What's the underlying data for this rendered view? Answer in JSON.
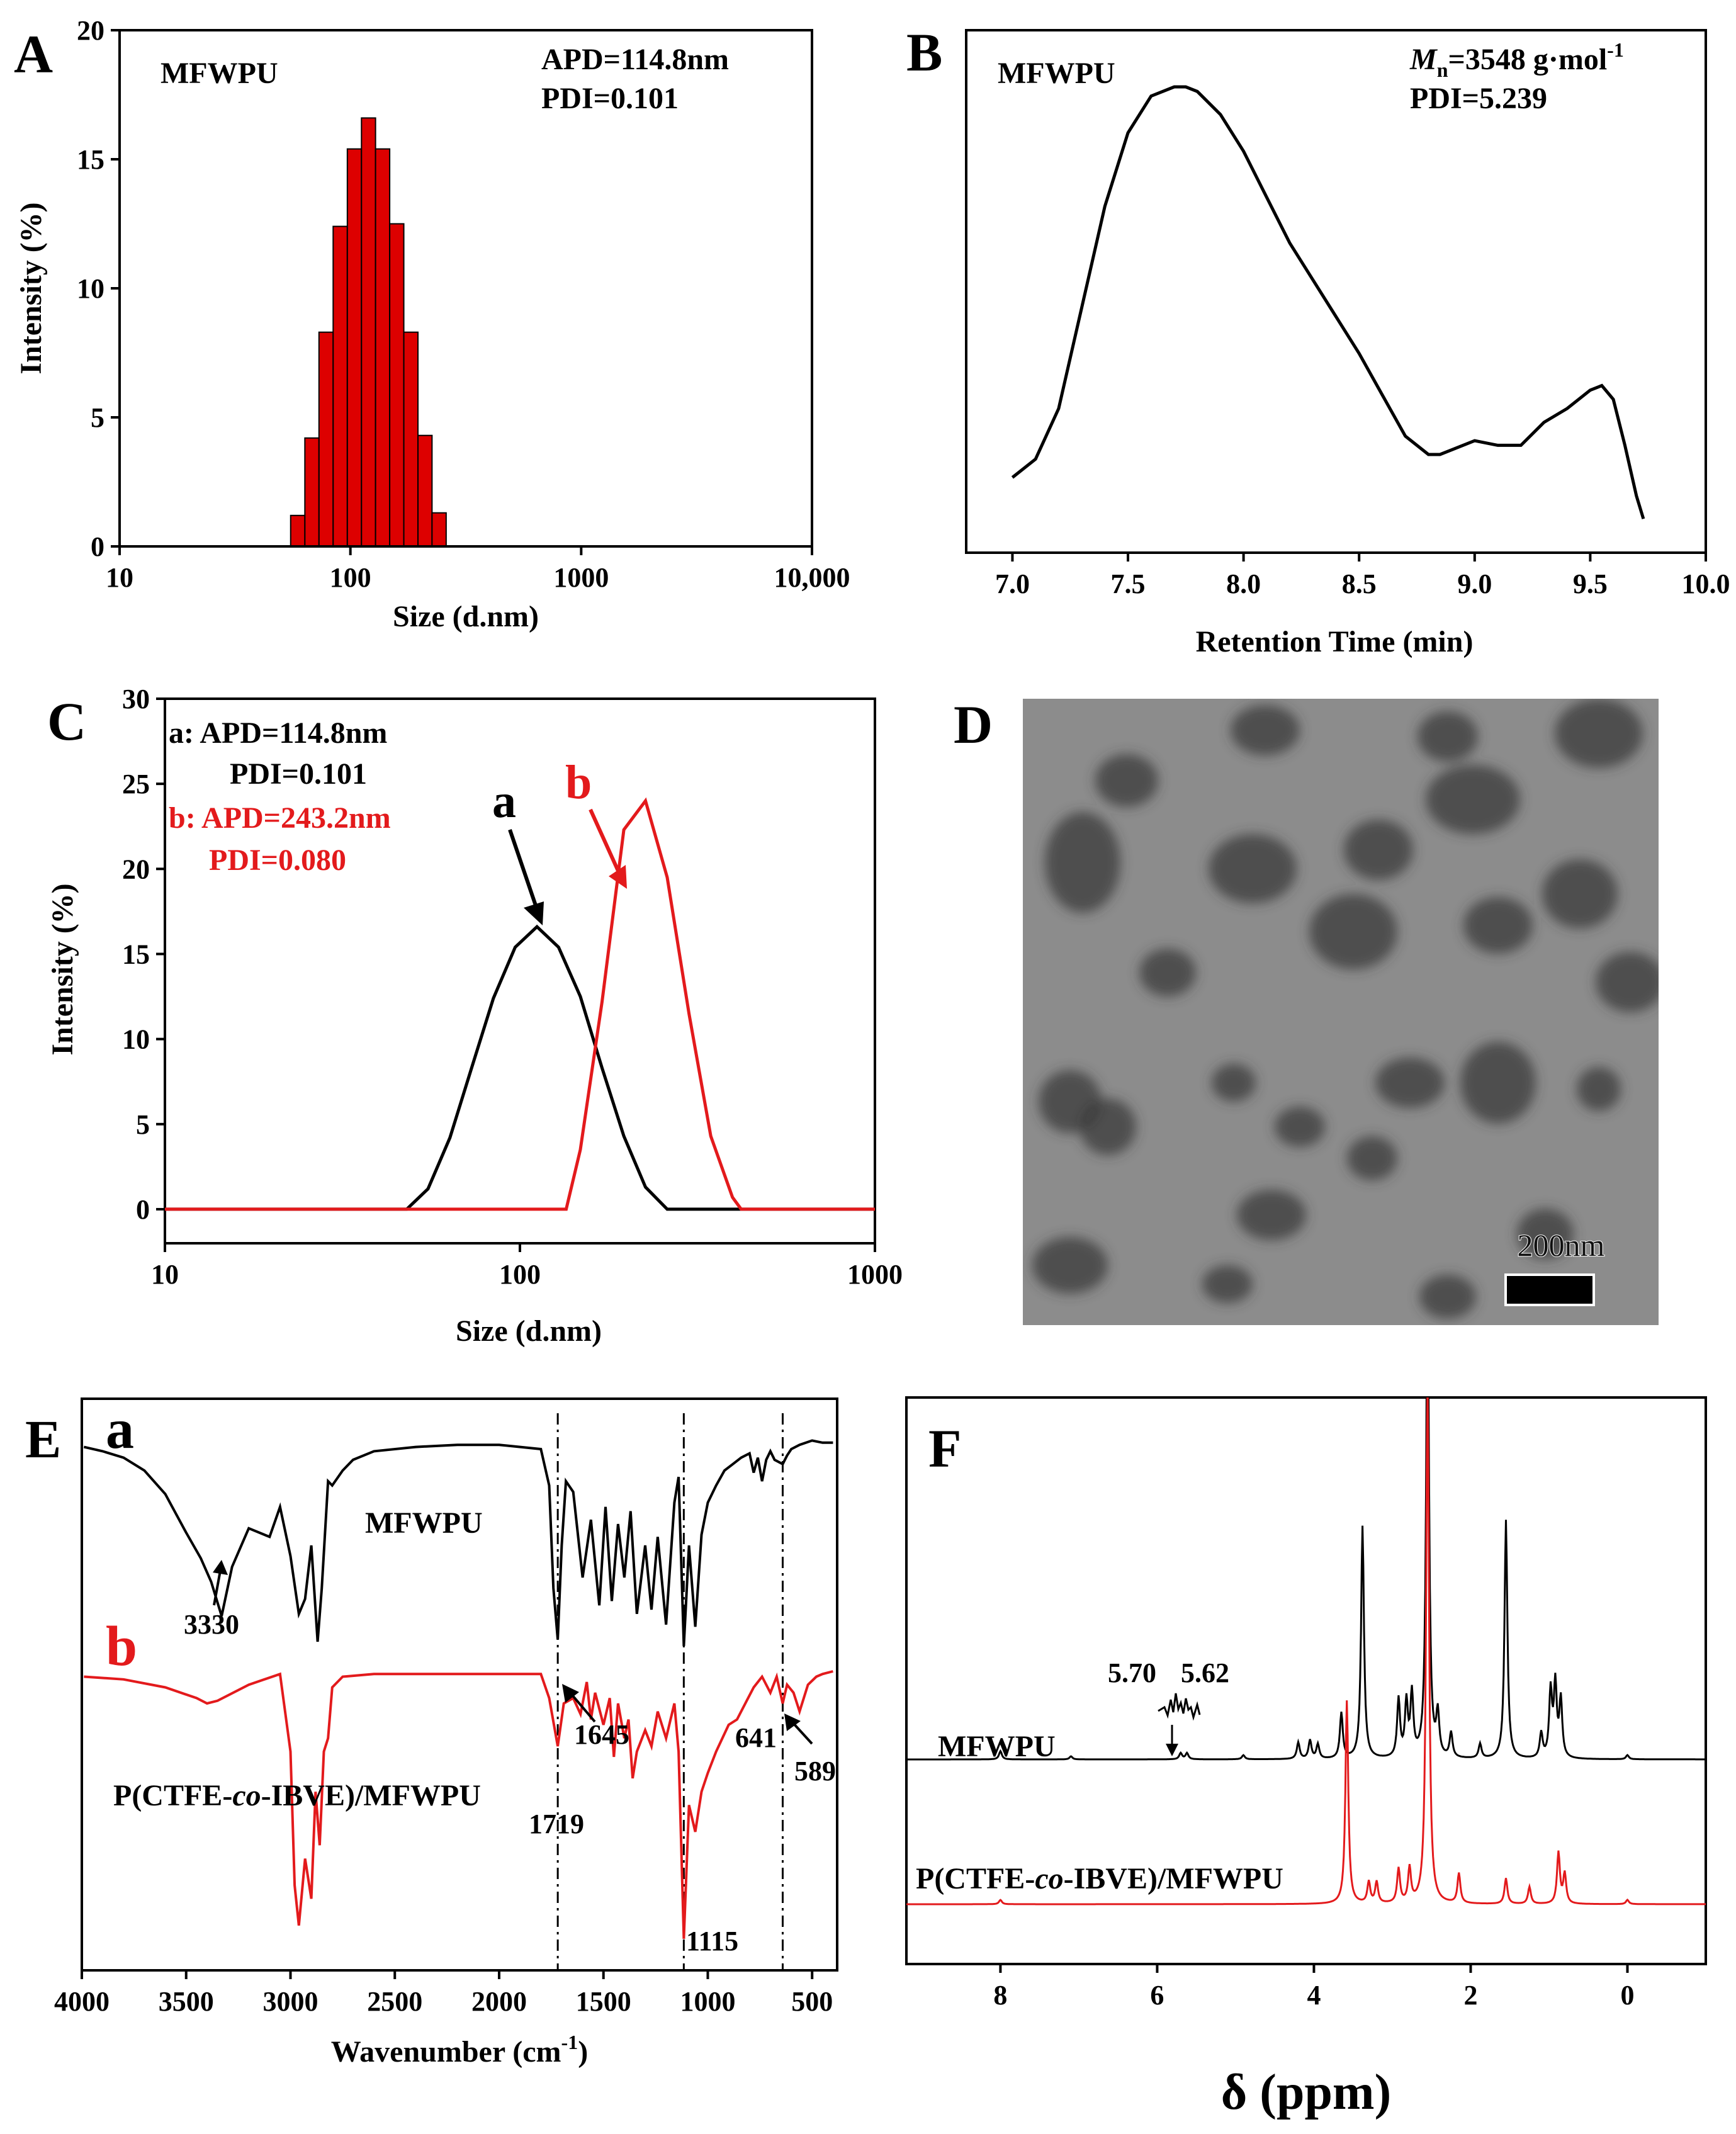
{
  "colors": {
    "black": "#000000",
    "red": "#e31a1c",
    "bar": "#dd0000",
    "tem_bg": "#8a8a8a"
  },
  "chart_data": [
    {
      "panel": "A",
      "type": "bar",
      "xscale": "log",
      "title": "MFWPU",
      "annotations": [
        "APD=114.8nm",
        "PDI=0.101"
      ],
      "xlabel": "Size (d.nm)",
      "ylabel": "Intensity (%)",
      "xlim": [
        10,
        10000
      ],
      "ylim": [
        0,
        20
      ],
      "xticks": [
        10,
        100,
        1000,
        10000
      ],
      "xtick_labels": [
        "10",
        "100",
        "1000",
        "10,000"
      ],
      "yticks": [
        0,
        5,
        10,
        15,
        20
      ],
      "ytick_labels": [
        "0",
        "5",
        "10",
        "15",
        "20"
      ],
      "bin_edges": [
        55.1,
        63.5,
        73.1,
        84.2,
        97.0,
        111.7,
        128.5,
        148.0,
        170.4,
        196.2,
        225.8,
        260.0
      ],
      "values": [
        1.2,
        4.2,
        8.3,
        12.4,
        15.4,
        16.6,
        15.4,
        12.5,
        8.3,
        4.3,
        1.3
      ]
    },
    {
      "panel": "B",
      "type": "line",
      "title": "MFWPU",
      "annotations": [
        "Mn=3548 g·mol -1",
        "PDI=5.239"
      ],
      "mn_prefix": "M",
      "mn_sub": "n",
      "mn_rest": "=3548 g·mol",
      "mn_sup": "-1",
      "pdi_text": "PDI=5.239",
      "xlabel": "Retention Time (min)",
      "ylabel": "",
      "xlim": [
        6.8,
        10.0
      ],
      "ylim": [
        0,
        1
      ],
      "xticks": [
        7.0,
        7.5,
        8.0,
        8.5,
        9.0,
        9.5,
        10.0
      ],
      "xtick_labels": [
        "7.0",
        "7.5",
        "8.0",
        "8.5",
        "9.0",
        "9.5",
        "10.0"
      ],
      "series": [
        {
          "name": "MFWPU",
          "color": "#000000",
          "x": [
            7.0,
            7.1,
            7.2,
            7.3,
            7.4,
            7.5,
            7.6,
            7.7,
            7.75,
            7.8,
            7.9,
            8.0,
            8.1,
            8.2,
            8.3,
            8.4,
            8.5,
            8.6,
            8.7,
            8.8,
            8.85,
            8.9,
            9.0,
            9.1,
            9.2,
            9.3,
            9.4,
            9.5,
            9.55,
            9.6,
            9.65,
            9.7,
            9.73
          ],
          "y": [
            0.15,
            0.19,
            0.3,
            0.52,
            0.74,
            0.9,
            0.98,
            1.0,
            1.0,
            0.99,
            0.94,
            0.86,
            0.76,
            0.66,
            0.58,
            0.5,
            0.42,
            0.33,
            0.24,
            0.2,
            0.2,
            0.21,
            0.23,
            0.22,
            0.22,
            0.27,
            0.3,
            0.34,
            0.35,
            0.32,
            0.22,
            0.11,
            0.06
          ]
        }
      ]
    },
    {
      "panel": "C",
      "type": "line",
      "xscale": "log",
      "xlabel": "Size (d.nm)",
      "ylabel": "Intensity (%)",
      "xlim": [
        10,
        1000
      ],
      "ylim": [
        -2,
        30
      ],
      "xticks": [
        10,
        100,
        1000
      ],
      "xtick_labels": [
        "10",
        "100",
        "1000"
      ],
      "yticks": [
        0,
        5,
        10,
        15,
        20,
        25,
        30
      ],
      "ytick_labels": [
        "0",
        "5",
        "10",
        "15",
        "20",
        "25",
        "30"
      ],
      "series": [
        {
          "name": "a",
          "legend": [
            "a: APD=114.8nm",
            "PDI=0.101"
          ],
          "color": "#000000",
          "x": [
            10,
            48,
            55.1,
            63.5,
            73.1,
            84.2,
            97.0,
            111.7,
            128.5,
            148.0,
            170.4,
            196.2,
            225.8,
            260.0,
            1000
          ],
          "y": [
            0,
            0,
            1.2,
            4.2,
            8.3,
            12.4,
            15.4,
            16.6,
            15.4,
            12.5,
            8.3,
            4.3,
            1.3,
            0,
            0
          ]
        },
        {
          "name": "b",
          "legend": [
            "b: APD=243.2nm",
            "PDI=0.080"
          ],
          "color": "#e31a1c",
          "x": [
            10,
            135,
            148.0,
            170.4,
            196.2,
            225.8,
            260.0,
            299.4,
            344.8,
            397.0,
            420,
            1000
          ],
          "y": [
            0,
            0,
            3.5,
            12.2,
            22.3,
            24.0,
            19.5,
            11.5,
            4.3,
            0.7,
            0,
            0
          ]
        }
      ]
    },
    {
      "panel": "E",
      "type": "line",
      "xlabel": "Wavenumber (cm-1)",
      "xlabel_main": "Wavenumber (cm",
      "xlabel_sup": "-1",
      "xlabel_end": ")",
      "xlim": [
        4000,
        380
      ],
      "xticks": [
        4000,
        3500,
        3000,
        2500,
        2000,
        1500,
        1000,
        500
      ],
      "xtick_labels": [
        "4000",
        "3500",
        "3000",
        "2500",
        "2000",
        "1500",
        "1000",
        "500"
      ],
      "peak_labels": [
        "3330",
        "1645",
        "1719",
        "641",
        "589",
        "1115"
      ],
      "series": [
        {
          "name": "a",
          "label": "MFWPU",
          "color": "#000000",
          "x": [
            3990,
            3900,
            3800,
            3700,
            3600,
            3500,
            3430,
            3380,
            3330,
            3280,
            3200,
            3100,
            3050,
            3000,
            2960,
            2930,
            2900,
            2870,
            2850,
            2820,
            2800,
            2750,
            2700,
            2600,
            2400,
            2200,
            2000,
            1800,
            1760,
            1740,
            1719,
            1700,
            1680,
            1645,
            1600,
            1560,
            1520,
            1490,
            1460,
            1430,
            1400,
            1370,
            1340,
            1300,
            1270,
            1240,
            1200,
            1160,
            1140,
            1115,
            1090,
            1060,
            1030,
            1000,
            960,
            920,
            880,
            840,
            800,
            780,
            760,
            740,
            720,
            700,
            680,
            641,
            620,
            600,
            560,
            500,
            450,
            400
          ],
          "y": [
            0.04,
            0.06,
            0.09,
            0.15,
            0.26,
            0.44,
            0.56,
            0.67,
            0.83,
            0.6,
            0.42,
            0.46,
            0.32,
            0.55,
            0.82,
            0.75,
            0.5,
            0.95,
            0.7,
            0.2,
            0.22,
            0.15,
            0.1,
            0.06,
            0.04,
            0.03,
            0.03,
            0.05,
            0.22,
            0.7,
            0.94,
            0.5,
            0.2,
            0.25,
            0.65,
            0.38,
            0.78,
            0.32,
            0.76,
            0.4,
            0.65,
            0.34,
            0.82,
            0.5,
            0.8,
            0.46,
            0.87,
            0.3,
            0.18,
            0.97,
            0.5,
            0.88,
            0.45,
            0.3,
            0.22,
            0.15,
            0.12,
            0.09,
            0.07,
            0.16,
            0.09,
            0.2,
            0.1,
            0.06,
            0.1,
            0.12,
            0.08,
            0.05,
            0.03,
            0.01,
            0.02,
            0.02
          ]
        },
        {
          "name": "b",
          "label": "P(CTFE-co-IBVE)/MFWPU",
          "label_pre": "P(CTFE-",
          "label_it": "co",
          "label_post": "-IBVE)/MFWPU",
          "color": "#e31a1c",
          "x": [
            3990,
            3800,
            3600,
            3450,
            3400,
            3350,
            3200,
            3050,
            3000,
            2980,
            2960,
            2930,
            2900,
            2880,
            2860,
            2840,
            2820,
            2800,
            2750,
            2600,
            2400,
            2000,
            1800,
            1760,
            1719,
            1690,
            1645,
            1610,
            1580,
            1560,
            1540,
            1500,
            1470,
            1450,
            1430,
            1400,
            1380,
            1360,
            1340,
            1300,
            1270,
            1240,
            1200,
            1160,
            1140,
            1115,
            1090,
            1060,
            1030,
            1000,
            960,
            900,
            860,
            820,
            780,
            740,
            700,
            670,
            641,
            620,
            589,
            560,
            520,
            480,
            450,
            400
          ],
          "y": [
            0.02,
            0.03,
            0.06,
            0.1,
            0.12,
            0.11,
            0.05,
            0.01,
            0.3,
            0.8,
            0.95,
            0.7,
            0.85,
            0.45,
            0.65,
            0.3,
            0.25,
            0.06,
            0.02,
            0.01,
            0.01,
            0.01,
            0.01,
            0.1,
            0.28,
            0.12,
            0.1,
            0.16,
            0.04,
            0.18,
            0.08,
            0.2,
            0.1,
            0.32,
            0.12,
            0.25,
            0.18,
            0.4,
            0.3,
            0.22,
            0.28,
            0.15,
            0.25,
            0.12,
            0.3,
            1.0,
            0.5,
            0.6,
            0.45,
            0.38,
            0.3,
            0.2,
            0.18,
            0.12,
            0.06,
            0.02,
            0.08,
            0.02,
            0.12,
            0.05,
            0.08,
            0.15,
            0.05,
            0.02,
            0.01,
            0.0
          ]
        }
      ]
    },
    {
      "panel": "F",
      "type": "line",
      "xlabel": "δ (ppm)",
      "xlim": [
        9.2,
        -1.0
      ],
      "xticks": [
        8,
        6,
        4,
        2,
        0
      ],
      "xtick_labels": [
        "8",
        "6",
        "4",
        "2",
        "0"
      ],
      "peak_labels": [
        "5.70",
        "5.62"
      ],
      "series": [
        {
          "name": "MFWPU",
          "label": "MFWPU",
          "color": "#000000",
          "peaks": [
            [
              8.0,
              0.04
            ],
            [
              7.1,
              0.015
            ],
            [
              5.7,
              0.03
            ],
            [
              5.62,
              0.03
            ],
            [
              4.9,
              0.02
            ],
            [
              4.2,
              0.08
            ],
            [
              4.05,
              0.09
            ],
            [
              3.95,
              0.07
            ],
            [
              3.65,
              0.22
            ],
            [
              3.38,
              1.12
            ],
            [
              2.92,
              0.28
            ],
            [
              2.82,
              0.26
            ],
            [
              2.75,
              0.3
            ],
            [
              2.55,
              2.3
            ],
            [
              2.42,
              0.2
            ],
            [
              2.25,
              0.12
            ],
            [
              1.88,
              0.07
            ],
            [
              1.55,
              1.15
            ],
            [
              1.1,
              0.12
            ],
            [
              0.98,
              0.32
            ],
            [
              0.92,
              0.35
            ],
            [
              0.85,
              0.28
            ],
            [
              0.0,
              0.02
            ]
          ]
        },
        {
          "name": "P(CTFE-co-IBVE)/MFWPU",
          "label": "P(CTFE-co-IBVE)/MFWPU",
          "label_pre": "P(CTFE-",
          "label_it": "co",
          "label_post": "-IBVE)/MFWPU",
          "color": "#e31a1c",
          "peaks": [
            [
              8.0,
              0.02
            ],
            [
              3.58,
              0.95
            ],
            [
              3.3,
              0.1
            ],
            [
              3.2,
              0.1
            ],
            [
              2.92,
              0.16
            ],
            [
              2.78,
              0.16
            ],
            [
              2.55,
              2.45
            ],
            [
              2.15,
              0.14
            ],
            [
              1.55,
              0.12
            ],
            [
              1.25,
              0.08
            ],
            [
              0.88,
              0.24
            ],
            [
              0.8,
              0.14
            ],
            [
              0.0,
              0.02
            ]
          ]
        }
      ]
    }
  ],
  "panel_labels": [
    "A",
    "B",
    "C",
    "D",
    "E",
    "F"
  ],
  "labels": {
    "c_a_line1": "a: APD=114.8nm",
    "c_a_line2": "PDI=0.101",
    "c_b_line1": "b: APD=243.2nm",
    "c_b_line2": "PDI=0.080",
    "c_curve_a": "a",
    "c_curve_b": "b",
    "e_a": "a",
    "e_b": "b",
    "e_mfwpu": "MFWPU",
    "f_mfwpu": "MFWPU",
    "a_title": "MFWPU",
    "a_apd": "APD=114.8nm",
    "a_pdi": "PDI=0.101",
    "b_title": "MFWPU"
  },
  "tem": {
    "scale_text": "200nm"
  }
}
